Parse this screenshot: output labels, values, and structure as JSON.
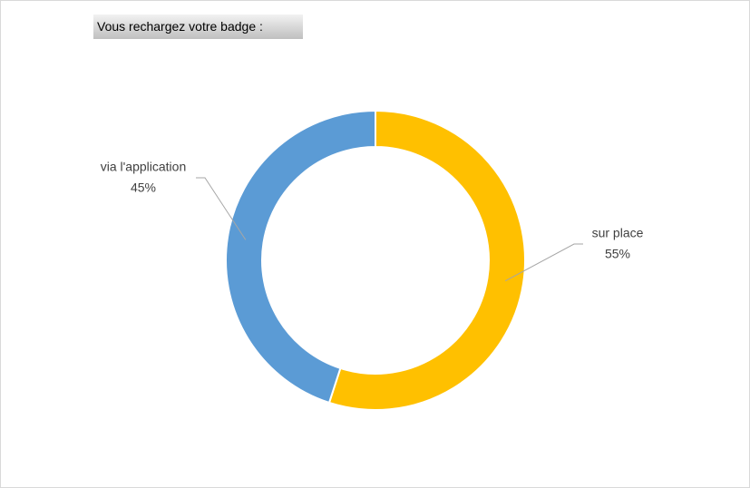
{
  "chart_data": {
    "type": "donut",
    "title": "Vous rechargez votre badge :",
    "categories": [
      "sur place",
      "via l'application"
    ],
    "values": [
      55,
      45
    ],
    "value_labels": [
      "55%",
      "45%"
    ],
    "colors": [
      "#FFC000",
      "#5B9BD5"
    ]
  }
}
